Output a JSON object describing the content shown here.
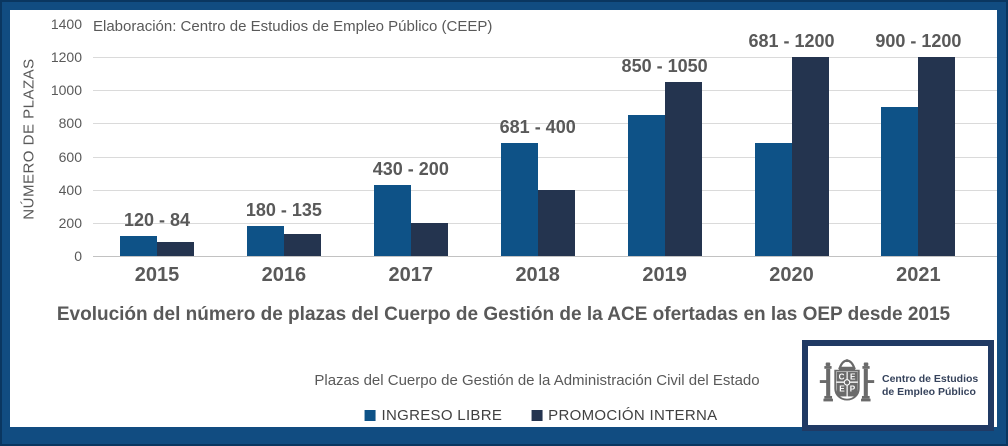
{
  "note": "Elaboración: Centro de Estudios de Empleo Público (CEEP)",
  "chart_data": {
    "type": "bar",
    "title": "Evolución del número de plazas del Cuerpo de Gestión de la ACE ofertadas en las OEP desde 2015",
    "xlabel": "",
    "ylabel": "NÚMERO DE PLAZAS",
    "categories": [
      "2015",
      "2016",
      "2017",
      "2018",
      "2019",
      "2020",
      "2021"
    ],
    "series": [
      {
        "name": "INGRESO LIBRE",
        "color": "#0E5287",
        "values": [
          120,
          180,
          430,
          681,
          850,
          681,
          900
        ]
      },
      {
        "name": "PROMOCIÓN INTERNA",
        "color": "#24344F",
        "values": [
          84,
          135,
          200,
          400,
          1050,
          1200,
          1200
        ]
      }
    ],
    "data_labels": [
      "120 - 84",
      "180 - 135",
      "430 - 200",
      "681 - 400",
      "850 - 1050",
      "681 - 1200",
      "900 - 1200"
    ],
    "ylim": [
      0,
      1400
    ],
    "yticks": [
      0,
      200,
      400,
      600,
      800,
      1000,
      1200,
      1400
    ],
    "grid": true,
    "legend_position": "bottom"
  },
  "legend": {
    "subtitle": "Plazas del Cuerpo de Gestión de la Administración Civil del Estado"
  },
  "logo": {
    "shield_letters": [
      "C",
      "E",
      "E",
      "P"
    ],
    "line1": "Centro de Estudios",
    "line2": "de Empleo Público"
  },
  "colors": {
    "frame": "#114C81",
    "frame_edge": "#0A3660",
    "bar_ingreso_libre": "#0E5287",
    "bar_promocion_interna": "#24344F",
    "text_gray": "#595959",
    "gridline": "#DADADA"
  }
}
